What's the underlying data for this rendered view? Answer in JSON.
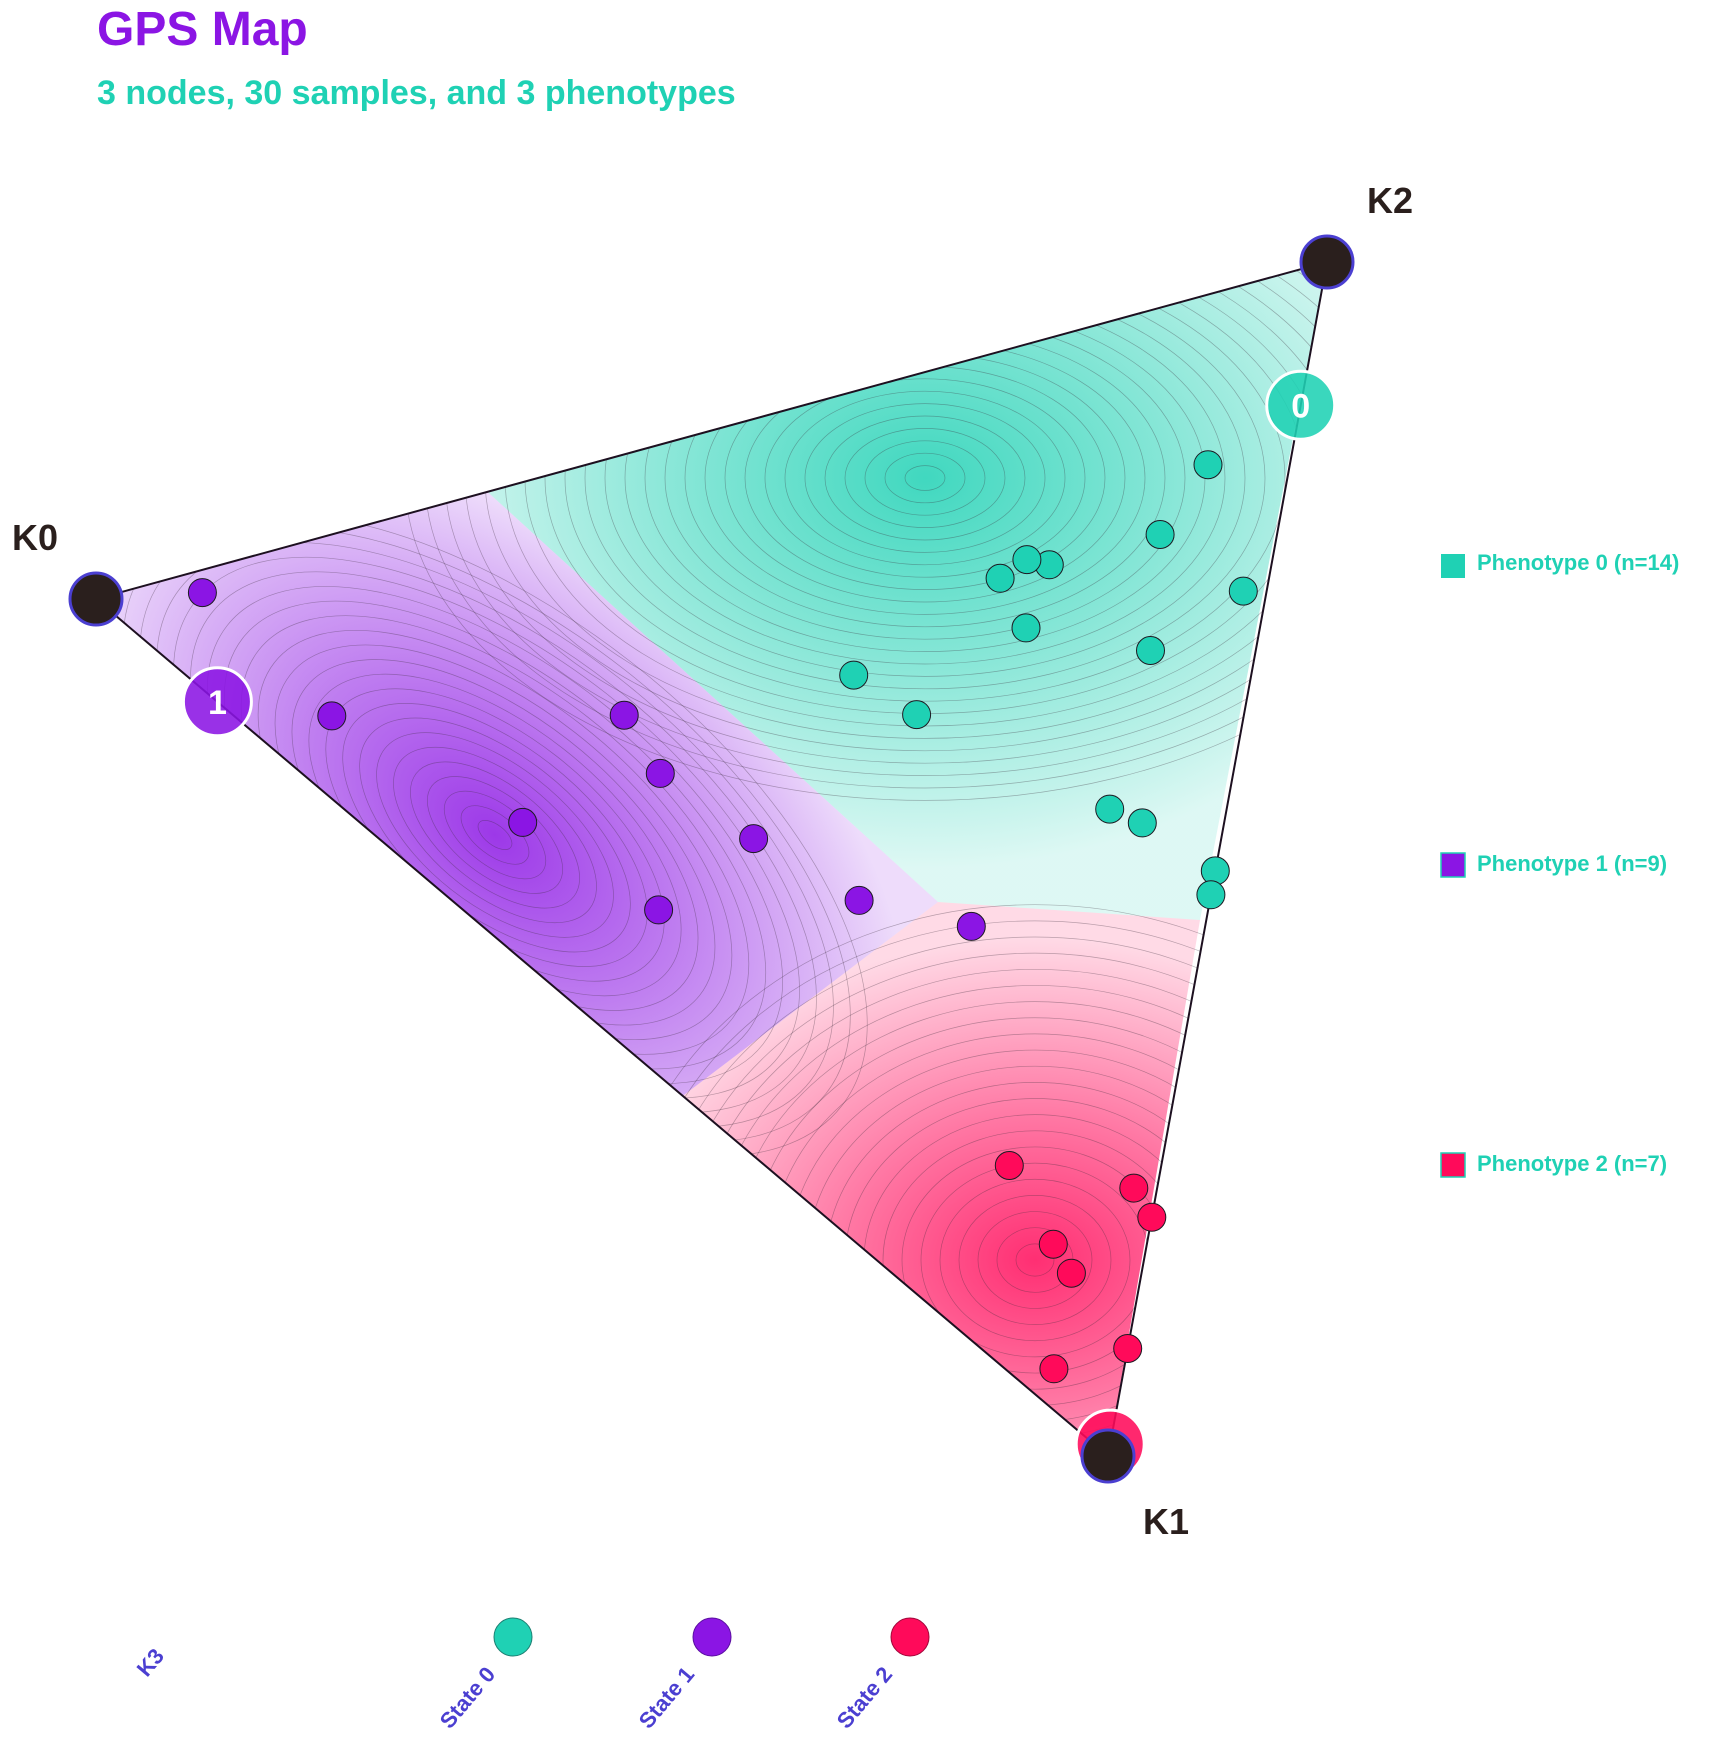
{
  "header": {
    "title": "GPS Map",
    "subtitle": "3 nodes, 30 samples, and 3 phenotypes"
  },
  "colors": {
    "title": "#8b15e4",
    "subtitle": "#1fd1b4",
    "phenotype_0": "#1fd1b4",
    "phenotype_1": "#8b15e4",
    "phenotype_2": "#ff0a5a",
    "node": "#2a1f1d",
    "node_outline": "#4b3fd1",
    "state_legend_text": "#4b3fd1"
  },
  "nodes": [
    {
      "label": "K0"
    },
    {
      "label": "K1"
    },
    {
      "label": "K2"
    }
  ],
  "phenotype_legend": [
    {
      "label": "Phenotype 0 (n=14)"
    },
    {
      "label": "Phenotype 1 (n=9)"
    },
    {
      "label": "Phenotype 2 (n=7)"
    }
  ],
  "state_legend": {
    "extra_label": "K3",
    "items": [
      {
        "label": "State 0"
      },
      {
        "label": "State 1"
      },
      {
        "label": "State 2"
      }
    ]
  },
  "chart_data": {
    "type": "scatter",
    "coordinate_system": "ternary (barycentric weights on nodes K0, K1, K2)",
    "title": "GPS Map",
    "subtitle": "3 nodes, 30 samples, and 3 phenotypes",
    "node_labels": [
      "K0",
      "K1",
      "K2"
    ],
    "phenotype_centroids": [
      {
        "phenotype": 0,
        "label": "0",
        "weights": [
          0.0,
          0.12,
          0.88
        ]
      },
      {
        "phenotype": 1,
        "label": "1",
        "weights": [
          0.88,
          0.12,
          0.0
        ]
      },
      {
        "phenotype": 2,
        "label": "2",
        "weights": [
          0.0,
          0.99,
          0.01
        ]
      }
    ],
    "samples": [
      {
        "phenotype": 0,
        "weights": [
          0.07,
          0.15,
          0.78
        ]
      },
      {
        "phenotype": 0,
        "weights": [
          0.1,
          0.2,
          0.7
        ]
      },
      {
        "phenotype": 0,
        "weights": [
          0.19,
          0.2,
          0.61
        ]
      },
      {
        "phenotype": 0,
        "weights": [
          0.23,
          0.2,
          0.57
        ]
      },
      {
        "phenotype": 0,
        "weights": [
          0.21,
          0.19,
          0.6
        ]
      },
      {
        "phenotype": 0,
        "weights": [
          0.2,
          0.25,
          0.55
        ]
      },
      {
        "phenotype": 0,
        "weights": [
          0.34,
          0.25,
          0.41
        ]
      },
      {
        "phenotype": 0,
        "weights": [
          0.28,
          0.3,
          0.42
        ]
      },
      {
        "phenotype": 0,
        "weights": [
          0.02,
          0.27,
          0.71
        ]
      },
      {
        "phenotype": 0,
        "weights": [
          0.09,
          0.3,
          0.61
        ]
      },
      {
        "phenotype": 0,
        "weights": [
          0.1,
          0.43,
          0.47
        ]
      },
      {
        "phenotype": 0,
        "weights": [
          0.07,
          0.45,
          0.48
        ]
      },
      {
        "phenotype": 0,
        "weights": [
          0.0,
          0.51,
          0.49
        ]
      },
      {
        "phenotype": 0,
        "weights": [
          0.0,
          0.53,
          0.47
        ]
      },
      {
        "phenotype": 1,
        "weights": [
          0.91,
          0.02,
          0.07
        ]
      },
      {
        "phenotype": 1,
        "weights": [
          0.78,
          0.16,
          0.06
        ]
      },
      {
        "phenotype": 1,
        "weights": [
          0.53,
          0.23,
          0.24
        ]
      },
      {
        "phenotype": 1,
        "weights": [
          0.6,
          0.3,
          0.1
        ]
      },
      {
        "phenotype": 1,
        "weights": [
          0.49,
          0.29,
          0.22
        ]
      },
      {
        "phenotype": 1,
        "weights": [
          0.4,
          0.37,
          0.23
        ]
      },
      {
        "phenotype": 1,
        "weights": [
          0.47,
          0.41,
          0.12
        ]
      },
      {
        "phenotype": 1,
        "weights": [
          0.3,
          0.45,
          0.25
        ]
      },
      {
        "phenotype": 1,
        "weights": [
          0.2,
          0.5,
          0.3
        ]
      },
      {
        "phenotype": 2,
        "weights": [
          0.0,
          0.8,
          0.2
        ]
      },
      {
        "phenotype": 2,
        "weights": [
          0.08,
          0.8,
          0.12
        ]
      },
      {
        "phenotype": 2,
        "weights": [
          0.02,
          0.77,
          0.21
        ]
      },
      {
        "phenotype": 2,
        "weights": [
          0.06,
          0.83,
          0.11
        ]
      },
      {
        "phenotype": 2,
        "weights": [
          0.0,
          0.91,
          0.09
        ]
      },
      {
        "phenotype": 2,
        "weights": [
          0.06,
          0.91,
          0.03
        ]
      },
      {
        "phenotype": 2,
        "weights": [
          0.13,
          0.72,
          0.15
        ]
      }
    ]
  }
}
